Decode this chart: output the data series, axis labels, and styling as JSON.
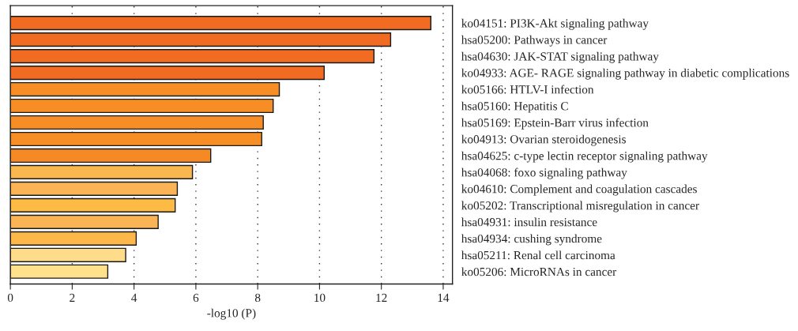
{
  "chart_data": {
    "type": "bar",
    "orientation": "horizontal",
    "xlabel": "-log10 (P)",
    "categories": [
      "ko04151: PI3K-Akt signaling pathway",
      "hsa05200: Pathways in cancer",
      "hsa04630: JAK-STAT signaling pathway",
      "ko04933: AGE- RAGE signaling pathway in diabetic complications",
      "ko05166: HTLV-I infection",
      "hsa05160: Hepatitis C",
      "hsa05169: Epstein-Barr virus infection",
      "ko04913: Ovarian steroidogenesis",
      "hsa04625: c-type lectin receptor signaling pathway",
      "hsa04068: foxo signaling pathway",
      "ko04610: Complement and coagulation cascades",
      "ko05202: Transcriptional misregulation in cancer",
      "hsa04931: insulin resistance",
      "hsa04934: cushing syndrome",
      "hsa05211: Renal cell carcinoma",
      "ko05206: MicroRNAs in cancer"
    ],
    "values": [
      13.6,
      12.3,
      11.76,
      10.15,
      8.7,
      8.5,
      8.18,
      8.13,
      6.48,
      5.89,
      5.4,
      5.33,
      4.78,
      4.07,
      3.73,
      3.15
    ],
    "colors": [
      "#f26b23",
      "#f26b23",
      "#f26b23",
      "#f26b23",
      "#f68e25",
      "#f68e25",
      "#f68e25",
      "#f68e25",
      "#f58a24",
      "#fbb74f",
      "#fab455",
      "#fdbb45",
      "#fab455",
      "#fdb849",
      "#ffdc8a",
      "#ffe18c"
    ],
    "xlim": [
      0,
      14.3
    ],
    "xticks": [
      0,
      2,
      4,
      6,
      8,
      10,
      12,
      14
    ],
    "grid": "x",
    "legend": false
  }
}
